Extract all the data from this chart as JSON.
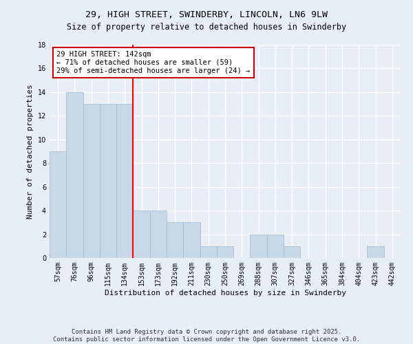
{
  "title": "29, HIGH STREET, SWINDERBY, LINCOLN, LN6 9LW",
  "subtitle": "Size of property relative to detached houses in Swinderby",
  "xlabel": "Distribution of detached houses by size in Swinderby",
  "ylabel": "Number of detached properties",
  "categories": [
    "57sqm",
    "76sqm",
    "96sqm",
    "115sqm",
    "134sqm",
    "153sqm",
    "173sqm",
    "192sqm",
    "211sqm",
    "230sqm",
    "250sqm",
    "269sqm",
    "288sqm",
    "307sqm",
    "327sqm",
    "346sqm",
    "365sqm",
    "384sqm",
    "404sqm",
    "423sqm",
    "442sqm"
  ],
  "values": [
    9,
    14,
    13,
    13,
    13,
    4,
    4,
    3,
    3,
    1,
    1,
    0,
    2,
    2,
    1,
    0,
    0,
    0,
    0,
    1,
    0
  ],
  "bar_color": "#c8d8e8",
  "bar_edge_color": "#a0b8cc",
  "bar_width": 1.0,
  "redline_index": 4.5,
  "ylim": [
    0,
    18
  ],
  "yticks": [
    0,
    2,
    4,
    6,
    8,
    10,
    12,
    14,
    16,
    18
  ],
  "annotation_text": "29 HIGH STREET: 142sqm\n← 71% of detached houses are smaller (59)\n29% of semi-detached houses are larger (24) →",
  "annotation_box_color": "#ffffff",
  "annotation_box_edge": "#cc0000",
  "footer_line1": "Contains HM Land Registry data © Crown copyright and database right 2025.",
  "footer_line2": "Contains public sector information licensed under the Open Government Licence v3.0.",
  "bg_color": "#e8eef6",
  "plot_bg_color": "#e8eef6",
  "grid_color": "#ffffff",
  "title_fontsize": 9.5,
  "subtitle_fontsize": 8.5,
  "axis_label_fontsize": 8,
  "tick_fontsize": 7,
  "annotation_fontsize": 7.5,
  "footer_fontsize": 6.5
}
